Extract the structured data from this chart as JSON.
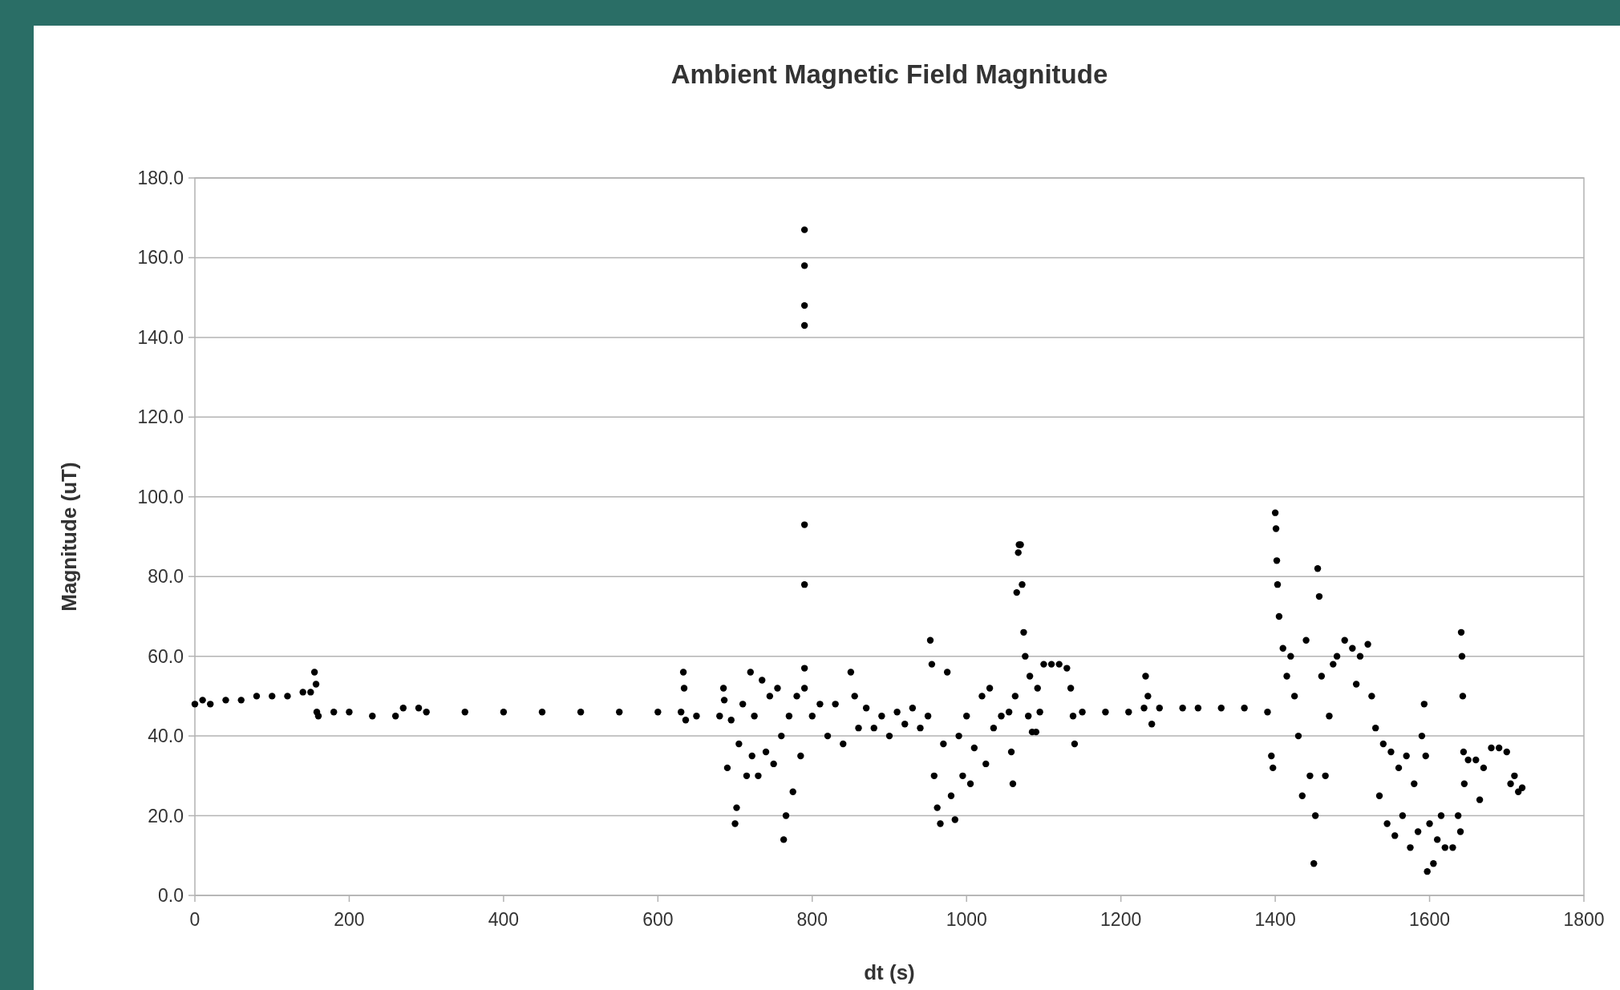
{
  "chart_data": {
    "type": "scatter",
    "title": "Ambient Magnetic Field Magnitude",
    "xlabel": "dt (s)",
    "ylabel": "Magnitude (uT)",
    "xlim": [
      0,
      1800
    ],
    "xticks": [
      0,
      200,
      400,
      600,
      800,
      1000,
      1200,
      1400,
      1600,
      1800
    ],
    "ylim": [
      0,
      180
    ],
    "yticks": [
      {
        "value": 0,
        "label": "0.0"
      },
      {
        "value": 20,
        "label": "20.0"
      },
      {
        "value": 40,
        "label": "40.0"
      },
      {
        "value": 60,
        "label": "60.0"
      },
      {
        "value": 80,
        "label": "80.0"
      },
      {
        "value": 100,
        "label": "100.0"
      },
      {
        "value": 120,
        "label": "120.0"
      },
      {
        "value": 140,
        "label": "140.0"
      },
      {
        "value": 160,
        "label": "160.0"
      },
      {
        "value": 180,
        "label": "180.0"
      }
    ],
    "grid": "y",
    "marker": "circle",
    "series": [
      {
        "color": "#000000",
        "x": [
          0,
          10,
          20,
          40,
          60,
          80,
          100,
          120,
          140,
          150,
          155,
          157,
          158,
          160,
          180,
          200,
          230,
          260,
          270,
          290,
          300,
          350,
          400,
          450,
          500,
          550,
          600,
          630,
          633,
          634,
          636,
          650,
          680,
          685,
          686,
          690,
          695,
          700,
          702,
          705,
          710,
          715,
          720,
          722,
          725,
          730,
          735,
          740,
          745,
          750,
          755,
          760,
          763,
          766,
          770,
          775,
          780,
          785,
          790,
          790,
          790,
          790,
          790,
          790,
          790,
          790,
          800,
          810,
          820,
          830,
          840,
          850,
          855,
          860,
          870,
          880,
          890,
          900,
          910,
          920,
          930,
          940,
          950,
          953,
          955,
          958,
          962,
          966,
          970,
          975,
          980,
          985,
          990,
          995,
          1000,
          1005,
          1010,
          1020,
          1025,
          1030,
          1035,
          1045,
          1055,
          1058,
          1060,
          1063,
          1065,
          1067,
          1068,
          1070,
          1072,
          1074,
          1076,
          1080,
          1082,
          1085,
          1090,
          1092,
          1095,
          1100,
          1110,
          1120,
          1130,
          1135,
          1138,
          1140,
          1150,
          1180,
          1210,
          1230,
          1232,
          1235,
          1240,
          1250,
          1280,
          1300,
          1330,
          1360,
          1390,
          1395,
          1397,
          1400,
          1401,
          1402,
          1403,
          1405,
          1410,
          1415,
          1420,
          1425,
          1430,
          1435,
          1440,
          1445,
          1450,
          1452,
          1455,
          1457,
          1460,
          1465,
          1470,
          1475,
          1480,
          1490,
          1500,
          1505,
          1510,
          1520,
          1525,
          1530,
          1535,
          1540,
          1545,
          1550,
          1555,
          1560,
          1565,
          1570,
          1575,
          1580,
          1585,
          1590,
          1593,
          1595,
          1597,
          1600,
          1605,
          1610,
          1615,
          1620,
          1630,
          1637,
          1640,
          1641,
          1642,
          1643,
          1644,
          1645,
          1650,
          1660,
          1665,
          1670,
          1680,
          1690,
          1700,
          1705,
          1710,
          1715,
          1720
        ],
        "values": [
          48,
          49,
          48,
          49,
          49,
          50,
          50,
          50,
          51,
          51,
          56,
          53,
          46,
          45,
          46,
          46,
          45,
          45,
          47,
          47,
          46,
          46,
          46,
          46,
          46,
          46,
          46,
          46,
          56,
          52,
          44,
          45,
          45,
          52,
          49,
          32,
          44,
          18,
          22,
          38,
          48,
          30,
          56,
          35,
          45,
          30,
          54,
          36,
          50,
          33,
          52,
          40,
          14,
          20,
          45,
          26,
          50,
          35,
          167,
          158,
          148,
          143,
          93,
          78,
          57,
          52,
          45,
          48,
          40,
          48,
          38,
          56,
          50,
          42,
          47,
          42,
          45,
          40,
          46,
          43,
          47,
          42,
          45,
          64,
          58,
          30,
          22,
          18,
          38,
          56,
          25,
          19,
          40,
          30,
          45,
          28,
          37,
          50,
          33,
          52,
          42,
          45,
          46,
          36,
          28,
          50,
          76,
          86,
          88,
          88,
          78,
          66,
          60,
          45,
          55,
          41,
          41,
          52,
          46,
          58,
          58,
          58,
          57,
          52,
          45,
          38,
          46,
          46,
          46,
          47,
          55,
          50,
          43,
          47,
          47,
          47,
          47,
          47,
          46,
          35,
          32,
          96,
          92,
          84,
          78,
          70,
          62,
          55,
          60,
          50,
          40,
          25,
          64,
          30,
          8,
          20,
          82,
          75,
          55,
          30,
          45,
          58,
          60,
          64,
          62,
          53,
          60,
          63,
          50,
          42,
          25,
          38,
          18,
          36,
          15,
          32,
          20,
          35,
          12,
          28,
          16,
          40,
          48,
          35,
          6,
          18,
          8,
          14,
          20,
          12,
          12,
          20,
          16,
          66,
          60,
          50,
          36,
          28,
          34,
          34,
          24,
          32,
          37,
          37,
          36,
          28,
          30,
          26,
          27
        ]
      }
    ]
  }
}
